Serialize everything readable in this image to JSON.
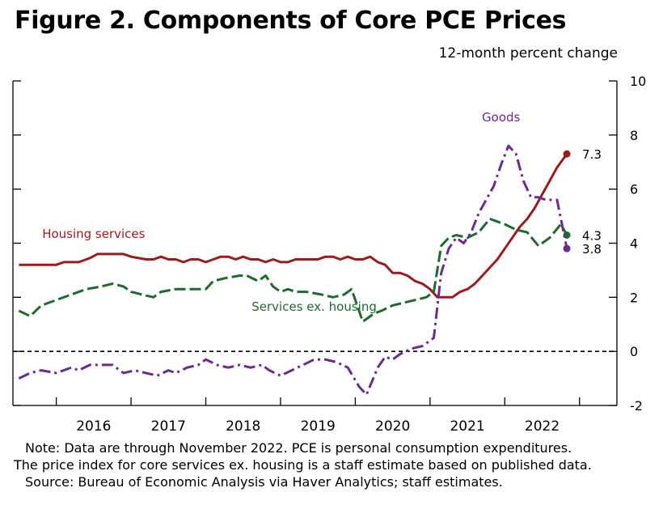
{
  "title": "Figure 2. Components of Core PCE Prices",
  "subtitle": "12-month percent change",
  "notes": [
    "Note: Data are through November 2022. PCE is personal consumption expenditures.",
    "The price index for core services ex. housing is a staff estimate based on published data.",
    "Source: Bureau of Economic Analysis via Haver Analytics; staff estimates."
  ],
  "chart_data": {
    "type": "line",
    "ylabel": "12-month percent change",
    "ylim": [
      -2,
      10
    ],
    "yticks": [
      -2,
      0,
      2,
      4,
      6,
      8,
      10
    ],
    "xlim": [
      2015.42,
      2023.5
    ],
    "year_labels": [
      "2016",
      "2017",
      "2018",
      "2019",
      "2020",
      "2021",
      "2022"
    ],
    "zero_line": "dashed",
    "grid": false,
    "series": [
      {
        "name": "Housing services",
        "color": "#9b1c1c",
        "dash": "solid",
        "end_label": "7.3",
        "x": [
          2015.5,
          2015.75,
          2016.0,
          2016.1,
          2016.3,
          2016.45,
          2016.55,
          2016.7,
          2016.8,
          2016.9,
          2017.0,
          2017.2,
          2017.3,
          2017.4,
          2017.5,
          2017.6,
          2017.7,
          2017.8,
          2017.9,
          2018.0,
          2018.1,
          2018.2,
          2018.3,
          2018.4,
          2018.5,
          2018.6,
          2018.7,
          2018.8,
          2018.9,
          2019.0,
          2019.1,
          2019.2,
          2019.3,
          2019.4,
          2019.5,
          2019.6,
          2019.7,
          2019.8,
          2019.9,
          2020.0,
          2020.1,
          2020.2,
          2020.3,
          2020.4,
          2020.5,
          2020.6,
          2020.7,
          2020.8,
          2020.9,
          2021.0,
          2021.1,
          2021.2,
          2021.3,
          2021.4,
          2021.5,
          2021.6,
          2021.7,
          2021.8,
          2021.9,
          2022.0,
          2022.1,
          2022.2,
          2022.3,
          2022.4,
          2022.5,
          2022.6,
          2022.7,
          2022.83
        ],
        "y": [
          3.2,
          3.2,
          3.2,
          3.3,
          3.3,
          3.45,
          3.6,
          3.6,
          3.6,
          3.6,
          3.5,
          3.4,
          3.4,
          3.5,
          3.4,
          3.4,
          3.3,
          3.4,
          3.4,
          3.3,
          3.4,
          3.5,
          3.5,
          3.4,
          3.5,
          3.4,
          3.4,
          3.3,
          3.4,
          3.3,
          3.3,
          3.4,
          3.4,
          3.4,
          3.4,
          3.5,
          3.5,
          3.4,
          3.5,
          3.4,
          3.4,
          3.5,
          3.3,
          3.2,
          2.9,
          2.9,
          2.8,
          2.6,
          2.5,
          2.3,
          2.0,
          2.0,
          2.0,
          2.2,
          2.3,
          2.5,
          2.8,
          3.1,
          3.4,
          3.8,
          4.2,
          4.6,
          4.9,
          5.3,
          5.8,
          6.3,
          6.8,
          7.3
        ]
      },
      {
        "name": "Services ex. housing",
        "color": "#1e6b30",
        "dash": "long-dash",
        "end_label": "4.3",
        "x": [
          2015.5,
          2015.65,
          2015.8,
          2016.0,
          2016.2,
          2016.4,
          2016.6,
          2016.75,
          2016.9,
          2017.0,
          2017.15,
          2017.3,
          2017.4,
          2017.6,
          2017.75,
          2017.9,
          2018.0,
          2018.1,
          2018.25,
          2018.45,
          2018.55,
          2018.7,
          2018.8,
          2018.9,
          2019.0,
          2019.1,
          2019.2,
          2019.35,
          2019.55,
          2019.7,
          2019.85,
          2019.95,
          2020.1,
          2020.25,
          2020.35,
          2020.5,
          2020.65,
          2020.8,
          2020.95,
          2021.05,
          2021.15,
          2021.25,
          2021.35,
          2021.5,
          2021.65,
          2021.8,
          2022.0,
          2022.15,
          2022.3,
          2022.45,
          2022.6,
          2022.75,
          2022.83
        ],
        "y": [
          1.5,
          1.3,
          1.7,
          1.9,
          2.1,
          2.3,
          2.4,
          2.5,
          2.4,
          2.2,
          2.1,
          2.0,
          2.2,
          2.3,
          2.3,
          2.3,
          2.3,
          2.6,
          2.7,
          2.8,
          2.8,
          2.6,
          2.8,
          2.4,
          2.2,
          2.3,
          2.2,
          2.2,
          2.1,
          2.0,
          2.1,
          2.3,
          1.1,
          1.4,
          1.5,
          1.7,
          1.8,
          1.9,
          2.0,
          2.2,
          3.9,
          4.2,
          4.3,
          4.2,
          4.4,
          4.9,
          4.7,
          4.5,
          4.4,
          3.9,
          4.2,
          4.7,
          4.3
        ]
      },
      {
        "name": "Goods",
        "color": "#6a2c91",
        "dash": "dash-dot",
        "end_label": "3.8",
        "x": [
          2015.5,
          2015.65,
          2015.8,
          2016.0,
          2016.1,
          2016.2,
          2016.3,
          2016.45,
          2016.6,
          2016.75,
          2016.9,
          2017.05,
          2017.2,
          2017.35,
          2017.5,
          2017.6,
          2017.75,
          2017.9,
          2018.0,
          2018.15,
          2018.3,
          2018.45,
          2018.6,
          2018.75,
          2018.85,
          2019.0,
          2019.15,
          2019.3,
          2019.45,
          2019.6,
          2019.75,
          2019.9,
          2020.05,
          2020.15,
          2020.3,
          2020.4,
          2020.5,
          2020.6,
          2020.75,
          2020.9,
          2021.05,
          2021.15,
          2021.25,
          2021.35,
          2021.45,
          2021.55,
          2021.65,
          2021.75,
          2021.85,
          2021.95,
          2022.05,
          2022.15,
          2022.25,
          2022.35,
          2022.45,
          2022.55,
          2022.7,
          2022.83
        ],
        "y": [
          -1.0,
          -0.8,
          -0.7,
          -0.8,
          -0.7,
          -0.6,
          -0.7,
          -0.5,
          -0.5,
          -0.5,
          -0.8,
          -0.7,
          -0.8,
          -0.9,
          -0.7,
          -0.8,
          -0.6,
          -0.5,
          -0.3,
          -0.5,
          -0.6,
          -0.5,
          -0.6,
          -0.5,
          -0.7,
          -0.9,
          -0.7,
          -0.5,
          -0.3,
          -0.3,
          -0.4,
          -0.6,
          -1.3,
          -1.6,
          -0.6,
          -0.2,
          -0.3,
          -0.1,
          0.1,
          0.2,
          0.5,
          2.9,
          3.8,
          4.2,
          4.0,
          4.4,
          5.1,
          5.6,
          6.1,
          6.9,
          7.6,
          7.3,
          6.3,
          5.7,
          5.7,
          5.6,
          5.6,
          3.8
        ]
      }
    ]
  }
}
